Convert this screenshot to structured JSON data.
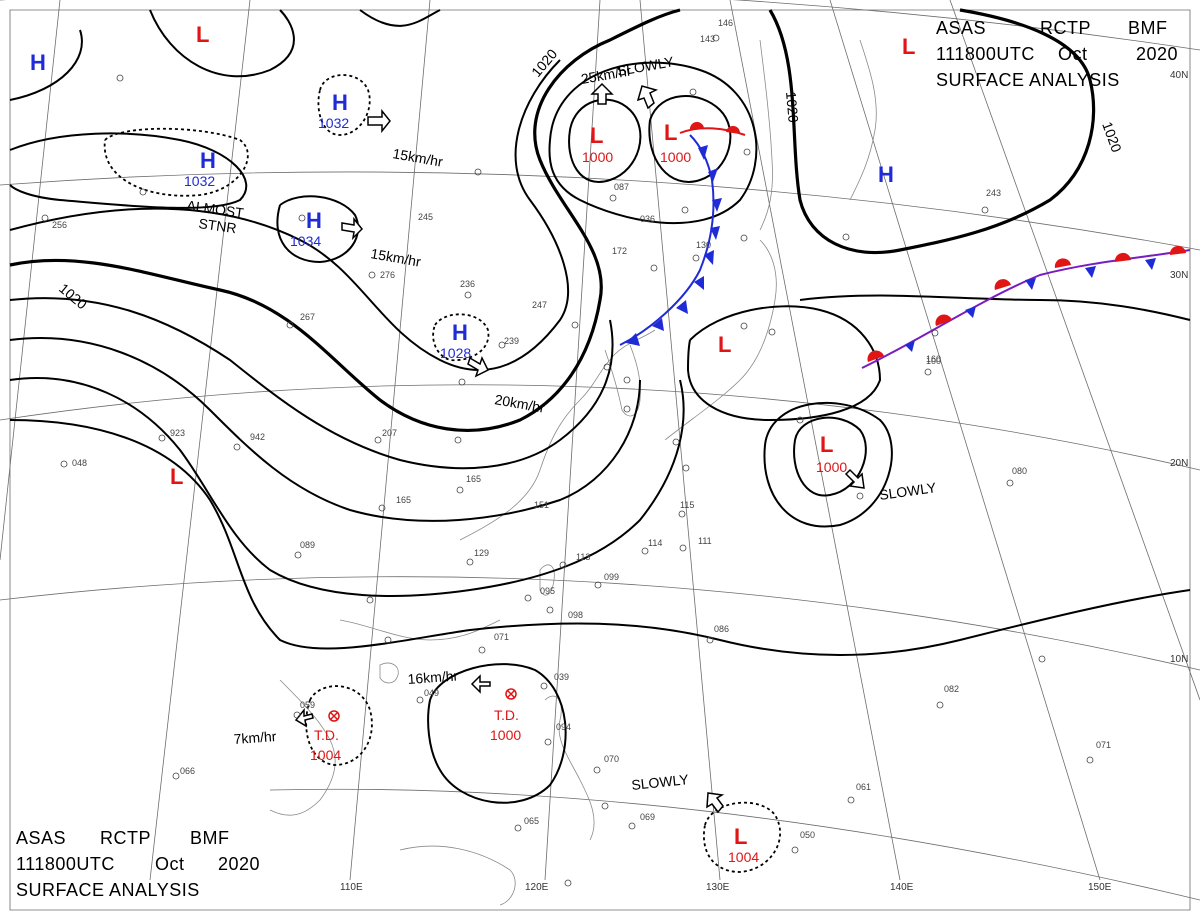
{
  "header_top": {
    "line1": [
      "ASAS",
      "RCTP",
      "BMF"
    ],
    "line2": [
      "111800UTC",
      "Oct",
      "2020"
    ],
    "line3": "SURFACE ANALYSIS"
  },
  "header_bottom": {
    "line1": [
      "ASAS",
      "RCTP",
      "BMF"
    ],
    "line2": [
      "111800UTC",
      "Oct",
      "2020"
    ],
    "line3": "SURFACE ANALYSIS"
  },
  "colors": {
    "high": "#1f2bd6",
    "low": "#e01515",
    "cold_front": "#1f2bd6",
    "warm_front": "#e01515",
    "isobar": "#000000",
    "grid": "#6d6d6d"
  },
  "lat_labels": [
    "40N",
    "30N",
    "20N",
    "10N"
  ],
  "lon_labels": [
    "110E",
    "120E",
    "130E",
    "140E",
    "150E"
  ],
  "isobar_labels": [
    "1020",
    "1020",
    "1020",
    "1020"
  ],
  "pressure_systems": [
    {
      "type": "H",
      "value": ""
    },
    {
      "type": "L",
      "value": ""
    },
    {
      "type": "H",
      "value": "1032"
    },
    {
      "type": "H",
      "value": "1032"
    },
    {
      "type": "H",
      "value": "1034"
    },
    {
      "type": "H",
      "value": "1028"
    },
    {
      "type": "L",
      "value": "1000"
    },
    {
      "type": "L",
      "value": "1000"
    },
    {
      "type": "L",
      "value": ""
    },
    {
      "type": "H",
      "value": ""
    },
    {
      "type": "L",
      "value": "1000"
    },
    {
      "type": "L",
      "value": ""
    },
    {
      "type": "L",
      "value": "1004"
    },
    {
      "type": "L",
      "value": ""
    }
  ],
  "depressions": [
    {
      "label": "T.D.",
      "value": "1000"
    },
    {
      "label": "T.D.",
      "value": "1004"
    }
  ],
  "motion_labels": [
    "15km/hr",
    "15km/hr",
    "20km/hr",
    "25km/hr",
    "SLOWLY",
    "SLOWLY",
    "SLOWLY",
    "16km/hr",
    "7km/hr"
  ],
  "notes": {
    "almost": "ALMOST",
    "stnr": "STNR"
  },
  "station_obs": [
    "256",
    "267",
    "276",
    "245",
    "236",
    "247",
    "239",
    "207",
    "165",
    "151",
    "165",
    "089",
    "129",
    "113",
    "099",
    "095",
    "098",
    "071",
    "039",
    "065",
    "069",
    "070",
    "050",
    "061",
    "071",
    "082",
    "080",
    "100",
    "243",
    "172",
    "130",
    "115",
    "114",
    "111",
    "086",
    "923",
    "942",
    "048",
    "066",
    "059",
    "049",
    "094",
    "160",
    "146",
    "143",
    "087",
    "036"
  ]
}
